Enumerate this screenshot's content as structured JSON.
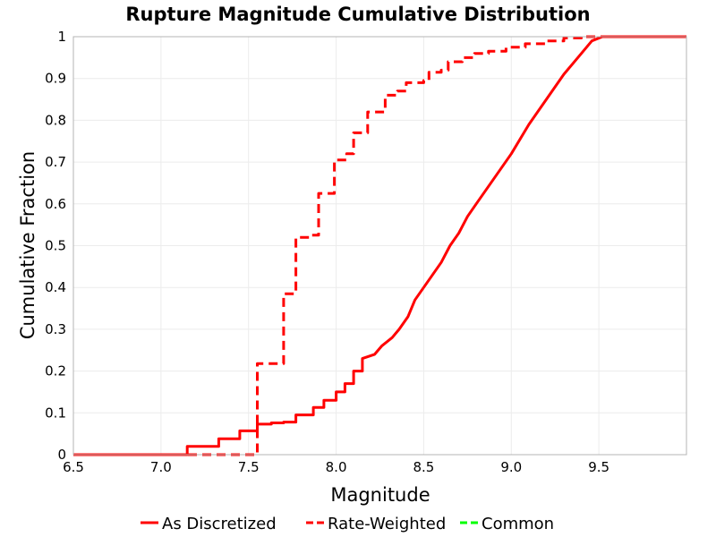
{
  "chart_data": {
    "type": "line",
    "title": "Rupture Magnitude Cumulative Distribution",
    "xlabel": "Magnitude",
    "ylabel": "Cumulative Fraction",
    "xlim": [
      6.5,
      10.0
    ],
    "ylim": [
      0,
      1
    ],
    "xticks": [
      "6.5",
      "7.0",
      "7.5",
      "8.0",
      "8.5",
      "9.0",
      "9.5"
    ],
    "yticks": [
      "0",
      "0.1",
      "0.2",
      "0.3",
      "0.4",
      "0.5",
      "0.6",
      "0.7",
      "0.8",
      "0.9",
      "1"
    ],
    "grid": true,
    "legend_position": "bottom",
    "series": [
      {
        "name": "As Discretized",
        "color": "#ff0000",
        "style": "solid",
        "points": [
          [
            6.5,
            0.0
          ],
          [
            7.15,
            0.0
          ],
          [
            7.15,
            0.02
          ],
          [
            7.33,
            0.02
          ],
          [
            7.33,
            0.038
          ],
          [
            7.45,
            0.038
          ],
          [
            7.45,
            0.057
          ],
          [
            7.55,
            0.057
          ],
          [
            7.55,
            0.073
          ],
          [
            7.63,
            0.073
          ],
          [
            7.63,
            0.076
          ],
          [
            7.7,
            0.076
          ],
          [
            7.7,
            0.078
          ],
          [
            7.77,
            0.078
          ],
          [
            7.77,
            0.095
          ],
          [
            7.87,
            0.095
          ],
          [
            7.87,
            0.113
          ],
          [
            7.93,
            0.113
          ],
          [
            7.93,
            0.13
          ],
          [
            8.0,
            0.13
          ],
          [
            8.0,
            0.15
          ],
          [
            8.05,
            0.15
          ],
          [
            8.05,
            0.17
          ],
          [
            8.1,
            0.17
          ],
          [
            8.1,
            0.2
          ],
          [
            8.15,
            0.2
          ],
          [
            8.15,
            0.23
          ],
          [
            8.22,
            0.24
          ],
          [
            8.26,
            0.26
          ],
          [
            8.32,
            0.28
          ],
          [
            8.36,
            0.3
          ],
          [
            8.41,
            0.33
          ],
          [
            8.45,
            0.37
          ],
          [
            8.5,
            0.4
          ],
          [
            8.55,
            0.43
          ],
          [
            8.6,
            0.46
          ],
          [
            8.65,
            0.5
          ],
          [
            8.7,
            0.53
          ],
          [
            8.75,
            0.57
          ],
          [
            8.8,
            0.6
          ],
          [
            8.9,
            0.66
          ],
          [
            9.0,
            0.72
          ],
          [
            9.1,
            0.79
          ],
          [
            9.2,
            0.85
          ],
          [
            9.3,
            0.91
          ],
          [
            9.4,
            0.96
          ],
          [
            9.46,
            0.99
          ],
          [
            9.52,
            1.0
          ],
          [
            10.0,
            1.0
          ]
        ]
      },
      {
        "name": "Rate-Weighted",
        "color": "#ff0000",
        "style": "dashed",
        "points": [
          [
            6.5,
            0.0
          ],
          [
            7.55,
            0.0
          ],
          [
            7.55,
            0.218
          ],
          [
            7.7,
            0.218
          ],
          [
            7.7,
            0.385
          ],
          [
            7.77,
            0.385
          ],
          [
            7.77,
            0.52
          ],
          [
            7.86,
            0.52
          ],
          [
            7.86,
            0.525
          ],
          [
            7.9,
            0.525
          ],
          [
            7.9,
            0.625
          ],
          [
            7.99,
            0.625
          ],
          [
            7.99,
            0.705
          ],
          [
            8.06,
            0.705
          ],
          [
            8.06,
            0.72
          ],
          [
            8.1,
            0.72
          ],
          [
            8.1,
            0.77
          ],
          [
            8.18,
            0.77
          ],
          [
            8.18,
            0.82
          ],
          [
            8.28,
            0.82
          ],
          [
            8.28,
            0.86
          ],
          [
            8.35,
            0.86
          ],
          [
            8.35,
            0.87
          ],
          [
            8.4,
            0.87
          ],
          [
            8.4,
            0.89
          ],
          [
            8.5,
            0.89
          ],
          [
            8.5,
            0.895
          ],
          [
            8.53,
            0.895
          ],
          [
            8.53,
            0.915
          ],
          [
            8.6,
            0.915
          ],
          [
            8.6,
            0.92
          ],
          [
            8.64,
            0.92
          ],
          [
            8.64,
            0.94
          ],
          [
            8.72,
            0.94
          ],
          [
            8.72,
            0.95
          ],
          [
            8.79,
            0.95
          ],
          [
            8.79,
            0.96
          ],
          [
            8.87,
            0.96
          ],
          [
            8.87,
            0.965
          ],
          [
            8.97,
            0.965
          ],
          [
            8.97,
            0.975
          ],
          [
            9.08,
            0.975
          ],
          [
            9.08,
            0.983
          ],
          [
            9.2,
            0.983
          ],
          [
            9.2,
            0.99
          ],
          [
            9.3,
            0.99
          ],
          [
            9.3,
            0.997
          ],
          [
            9.4,
            0.997
          ],
          [
            9.4,
            1.0
          ],
          [
            10.0,
            1.0
          ]
        ]
      },
      {
        "name": "Common",
        "color": "#00ff00",
        "style": "dashed",
        "points": []
      }
    ]
  }
}
